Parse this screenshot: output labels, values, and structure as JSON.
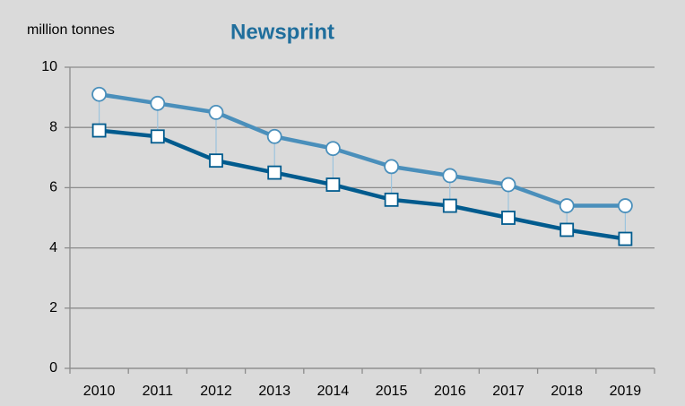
{
  "chart_data": {
    "type": "line",
    "title": "Newsprint",
    "y_axis_label": "million tonnes",
    "categories": [
      "2010",
      "2011",
      "2012",
      "2013",
      "2014",
      "2015",
      "2016",
      "2017",
      "2018",
      "2019"
    ],
    "series": [
      {
        "color": "#4a8fbb",
        "marker": "circle",
        "values": [
          9.1,
          8.8,
          8.5,
          7.7,
          7.3,
          6.7,
          6.4,
          6.1,
          5.4,
          5.4
        ]
      },
      {
        "color": "#005b8e",
        "marker": "square",
        "values": [
          7.9,
          7.7,
          6.9,
          6.5,
          6.1,
          5.6,
          5.4,
          5.0,
          4.6,
          4.3
        ]
      }
    ],
    "ylim": [
      0,
      10
    ],
    "yticks": [
      0,
      2,
      4,
      6,
      8,
      10
    ],
    "grid": true,
    "high_low_lines": true
  }
}
